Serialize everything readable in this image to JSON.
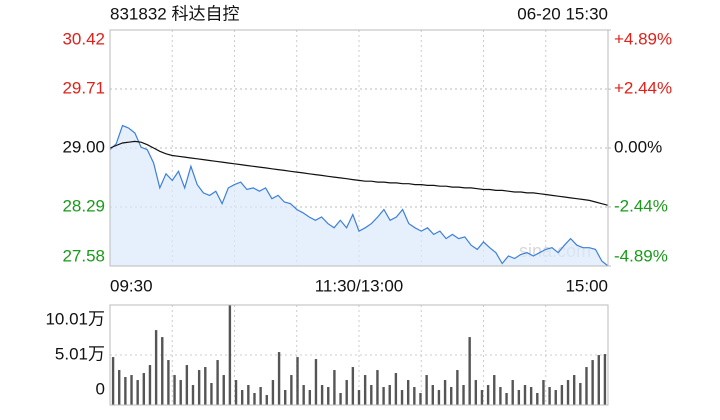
{
  "chart_data": [
    {
      "type": "line",
      "title": "831832 科达自控",
      "timestamp": "06-20 15:30",
      "watermark": "sina.com",
      "categories": [
        "09:30",
        null,
        null,
        null,
        null,
        null,
        null,
        null,
        null,
        null,
        null,
        null,
        null,
        null,
        null,
        null,
        null,
        null,
        null,
        null,
        null,
        null,
        null,
        null,
        null,
        null,
        null,
        null,
        null,
        null,
        null,
        null,
        null,
        null,
        null,
        null,
        null,
        null,
        null,
        null,
        "11:30/13:00",
        null,
        null,
        null,
        null,
        null,
        null,
        null,
        null,
        null,
        null,
        null,
        null,
        null,
        null,
        null,
        null,
        null,
        null,
        null,
        null,
        null,
        null,
        null,
        null,
        null,
        null,
        null,
        null,
        null,
        null,
        null,
        null,
        null,
        null,
        null,
        null,
        null,
        null,
        null,
        "15:00"
      ],
      "series": [
        {
          "color": "#3d7fd9",
          "fill": "#dce9fb",
          "values": [
            28.98,
            29.05,
            29.27,
            29.24,
            29.18,
            29.01,
            28.98,
            28.82,
            28.52,
            28.69,
            28.61,
            28.72,
            28.52,
            28.78,
            28.56,
            28.46,
            28.43,
            28.48,
            28.33,
            28.52,
            28.56,
            28.59,
            28.5,
            28.52,
            28.48,
            28.52,
            28.39,
            28.43,
            28.35,
            28.33,
            28.26,
            28.22,
            28.17,
            28.13,
            28.17,
            28.09,
            28.04,
            28.13,
            28.04,
            28.2,
            28.0,
            28.04,
            28.09,
            28.17,
            28.26,
            28.13,
            28.17,
            28.26,
            28.09,
            28.04,
            28.0,
            28.04,
            27.96,
            28.0,
            27.91,
            27.96,
            27.91,
            27.93,
            27.83,
            27.78,
            27.87,
            27.8,
            27.74,
            27.61,
            27.7,
            27.67,
            27.72,
            27.74,
            27.7,
            27.74,
            27.78,
            27.8,
            27.74,
            27.83,
            27.91,
            27.83,
            27.8,
            27.8,
            27.78,
            27.64,
            27.58
          ]
        },
        {
          "color": "#111111",
          "values": [
            29.0,
            29.03,
            29.06,
            29.07,
            29.08,
            29.07,
            29.04,
            29.0,
            28.96,
            28.93,
            28.91,
            28.9,
            28.89,
            28.88,
            28.87,
            28.86,
            28.85,
            28.84,
            28.83,
            28.82,
            28.81,
            28.8,
            28.79,
            28.78,
            28.77,
            28.76,
            28.75,
            28.74,
            28.73,
            28.72,
            28.71,
            28.7,
            28.69,
            28.68,
            28.67,
            28.66,
            28.65,
            28.64,
            28.63,
            28.62,
            28.61,
            28.6,
            28.6,
            28.59,
            28.59,
            28.58,
            28.58,
            28.57,
            28.57,
            28.56,
            28.56,
            28.55,
            28.55,
            28.54,
            28.54,
            28.53,
            28.53,
            28.52,
            28.52,
            28.51,
            28.5,
            28.5,
            28.49,
            28.49,
            28.48,
            28.47,
            28.47,
            28.46,
            28.46,
            28.45,
            28.44,
            28.43,
            28.42,
            28.41,
            28.4,
            28.39,
            28.38,
            28.37,
            28.35,
            28.33,
            28.31
          ]
        }
      ],
      "ylim": [
        27.58,
        30.42
      ],
      "yticks": [
        30.42,
        29.71,
        {
          "value": 29,
          "label": "29.00"
        },
        28.29,
        27.58
      ],
      "y2lim": [
        -4.89,
        4.89
      ],
      "y2ticks": [
        {
          "value": 4.89,
          "label": "+4.89%"
        },
        {
          "value": 2.44,
          "label": "+2.44%"
        },
        {
          "value": 0,
          "label": "0.00%"
        },
        {
          "value": -2.44,
          "label": "-2.44%"
        },
        {
          "value": -4.89,
          "label": "-4.89%"
        }
      ],
      "up_color": "#e0201a",
      "down_color": "#1a9a1a",
      "flat_color": "#111111",
      "grid": true
    },
    {
      "type": "bar",
      "color": "#555555",
      "values": [
        4.8,
        3.5,
        2.8,
        3.0,
        2.5,
        3.2,
        4.0,
        7.5,
        6.8,
        4.5,
        3.0,
        2.5,
        4.0,
        2.0,
        3.5,
        3.8,
        2.2,
        4.5,
        3.0,
        10.0,
        2.5,
        1.5,
        2.0,
        1.2,
        1.8,
        1.0,
        2.5,
        5.3,
        1.5,
        3.0,
        4.8,
        2.0,
        1.5,
        4.6,
        2.0,
        1.8,
        3.5,
        1.2,
        2.5,
        3.8,
        1.5,
        3.0,
        2.0,
        3.5,
        1.8,
        2.0,
        3.2,
        1.5,
        2.5,
        1.8,
        1.2,
        3.0,
        2.0,
        1.5,
        2.5,
        1.8,
        3.5,
        2.0,
        6.8,
        2.5,
        1.5,
        2.0,
        3.0,
        1.8,
        1.2,
        2.5,
        1.5,
        2.0,
        1.8,
        1.2,
        2.5,
        1.8,
        1.5,
        2.0,
        2.5,
        3.0,
        2.2,
        3.8,
        4.5,
        5.0,
        5.1
      ],
      "ylim": [
        0,
        10.01
      ],
      "yticks": [
        {
          "value": 10.01,
          "label": "10.01万"
        },
        {
          "value": 5.01,
          "label": "5.01万"
        },
        0
      ]
    }
  ]
}
